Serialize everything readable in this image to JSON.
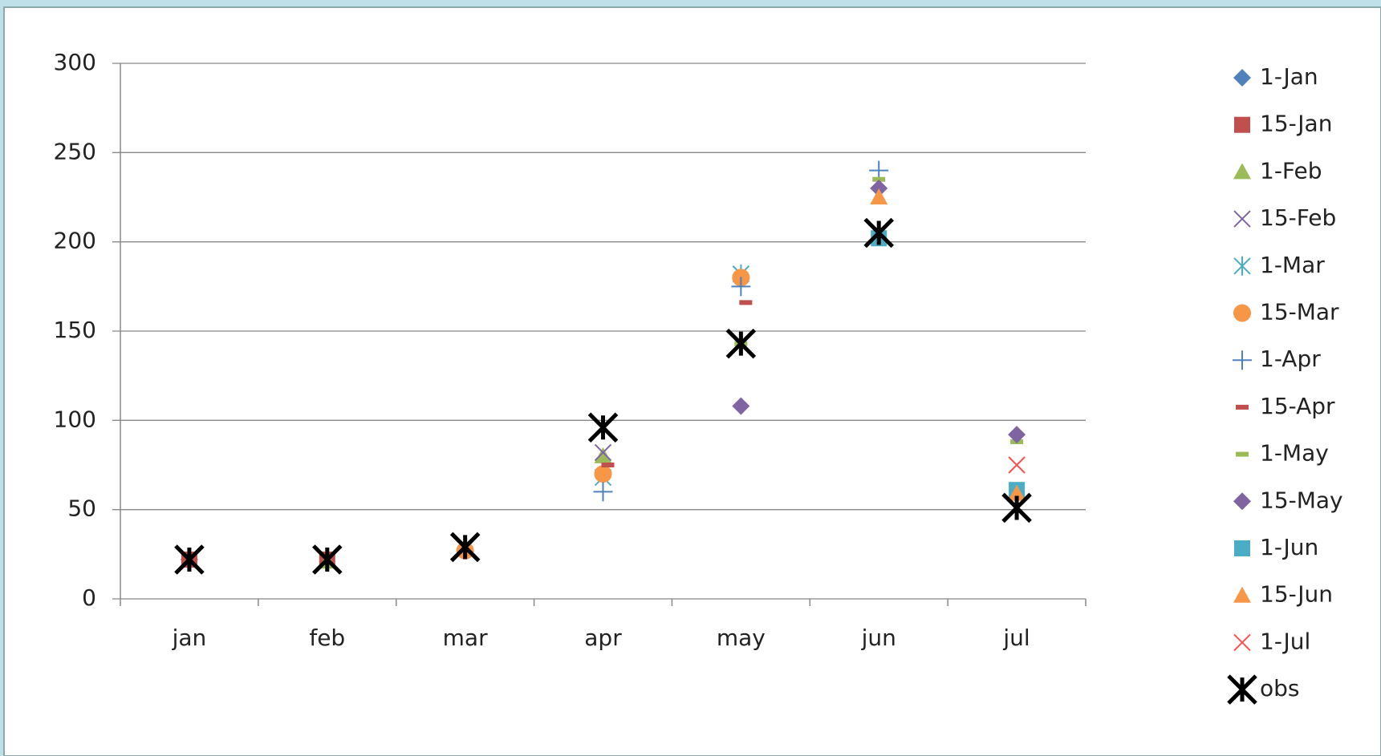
{
  "chart_data": {
    "type": "line",
    "lines": false,
    "categories": [
      "jan",
      "feb",
      "mar",
      "apr",
      "may",
      "jun",
      "jul"
    ],
    "ylim": [
      0,
      300
    ],
    "yticks": [
      0,
      50,
      100,
      150,
      200,
      250,
      300
    ],
    "grid": true,
    "legend": "right",
    "series": [
      {
        "name": "1-Jan",
        "color": "#4f81bd",
        "marker": "diamond",
        "values": [
          22,
          null,
          null,
          null,
          null,
          null,
          null
        ]
      },
      {
        "name": "15-Jan",
        "color": "#c0504d",
        "marker": "square",
        "values": [
          22,
          22,
          null,
          null,
          null,
          null,
          null
        ]
      },
      {
        "name": "1-Feb",
        "color": "#9bbb59",
        "marker": "triangle",
        "values": [
          null,
          21,
          null,
          80,
          null,
          null,
          null
        ]
      },
      {
        "name": "15-Feb",
        "color": "#8064a2",
        "marker": "x",
        "values": [
          null,
          null,
          null,
          82,
          null,
          null,
          null
        ]
      },
      {
        "name": "1-Mar",
        "color": "#4bacc6",
        "marker": "star",
        "values": [
          null,
          null,
          28,
          68,
          182,
          null,
          null
        ]
      },
      {
        "name": "15-Mar",
        "color": "#f79646",
        "marker": "circle",
        "values": [
          null,
          null,
          27,
          70,
          180,
          null,
          null
        ]
      },
      {
        "name": "1-Apr",
        "color": "#4f81bd",
        "marker": "plus",
        "values": [
          null,
          null,
          null,
          60,
          175,
          240,
          null
        ]
      },
      {
        "name": "15-Apr",
        "color": "#c0504d",
        "marker": "dash",
        "values": [
          null,
          null,
          null,
          75,
          166,
          null,
          null
        ]
      },
      {
        "name": "1-May",
        "color": "#9bbb59",
        "marker": "dash",
        "values": [
          null,
          null,
          null,
          null,
          143,
          235,
          88
        ]
      },
      {
        "name": "15-May",
        "color": "#8064a2",
        "marker": "diamond",
        "values": [
          null,
          null,
          null,
          null,
          108,
          230,
          92
        ]
      },
      {
        "name": "1-Jun",
        "color": "#4bacc6",
        "marker": "square",
        "values": [
          null,
          null,
          null,
          null,
          null,
          202,
          61
        ]
      },
      {
        "name": "15-Jun",
        "color": "#f79646",
        "marker": "triangle",
        "values": [
          null,
          null,
          null,
          null,
          null,
          225,
          59
        ]
      },
      {
        "name": "1-Jul",
        "color": "#ff5050",
        "marker": "x",
        "values": [
          null,
          null,
          null,
          null,
          null,
          null,
          75
        ]
      },
      {
        "name": "obs",
        "color": "#000000",
        "marker": "boldstar",
        "values": [
          22,
          22,
          29,
          96,
          143,
          205,
          51
        ]
      }
    ]
  }
}
